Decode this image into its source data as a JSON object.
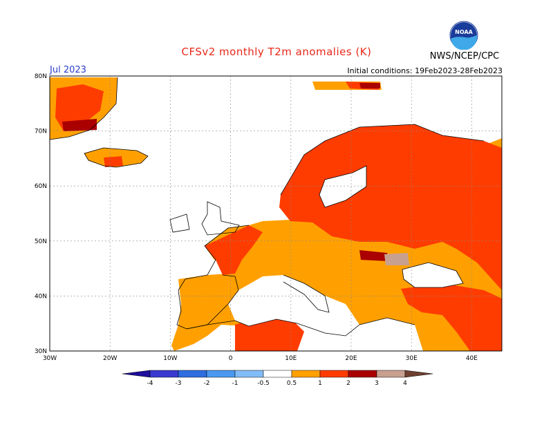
{
  "header": {
    "title": "CFSv2 monthly T2m anomalies (K)",
    "valid_month": "Jul 2023",
    "initial_conditions": "Initial conditions: 19Feb2023-28Feb2023",
    "agency": "NWS/NCEP/CPC",
    "logo_text": "NOAA"
  },
  "map": {
    "lat_range": [
      30,
      80
    ],
    "lon_range": [
      -30,
      45
    ],
    "lat_ticks": [
      "30N",
      "40N",
      "50N",
      "60N",
      "70N",
      "80N"
    ],
    "lon_ticks": [
      "30W",
      "20W",
      "10W",
      "0",
      "10E",
      "20E",
      "30E",
      "40E"
    ]
  },
  "colorbar": {
    "labels": [
      "-4",
      "-3",
      "-2",
      "-1",
      "-0.5",
      "0.5",
      "1",
      "2",
      "3",
      "4"
    ],
    "colors": [
      "#1e0e9a",
      "#3a3ad0",
      "#2e6ee0",
      "#4a98f0",
      "#82bcf8",
      "#ffffff",
      "#ffa000",
      "#ff3c00",
      "#aa0000",
      "#c8a090",
      "#704030"
    ]
  }
}
